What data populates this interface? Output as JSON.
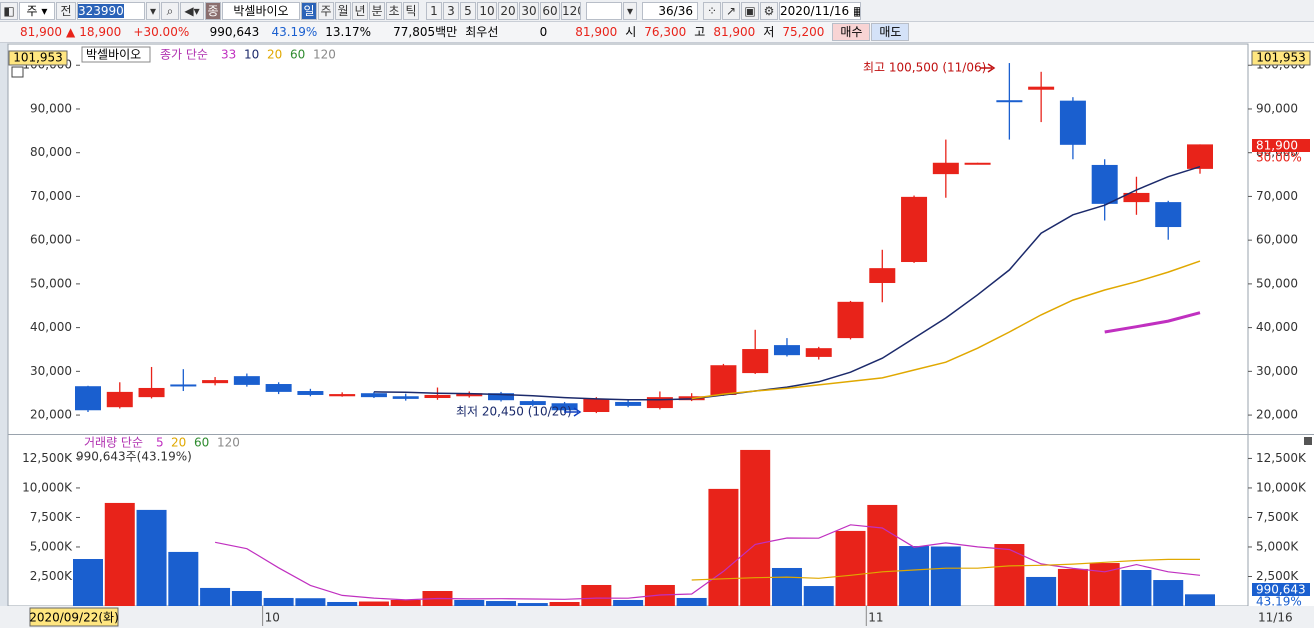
{
  "toolbar": {
    "mode": "주",
    "scope": "전",
    "code": "323990",
    "name": "박셀바이오",
    "periods": [
      "일",
      "주",
      "월",
      "년",
      "분",
      "초",
      "틱"
    ],
    "intervals": [
      "1",
      "3",
      "5",
      "10",
      "20",
      "30",
      "60",
      "120"
    ],
    "count": "36/36",
    "date": "2020/11/16"
  },
  "quote": {
    "price": "81,900",
    "change": "18,900",
    "change_pct": "+30.00%",
    "volume": "990,643",
    "volume_ratio": "43.19%",
    "turnover": "13.17%",
    "amount": "77,805백만",
    "best_label": "최우선",
    "best_qty": "0",
    "best_price": "81,900",
    "open_label": "시",
    "open": "76,300",
    "high_label": "고",
    "high": "81,900",
    "low_label": "저",
    "low": "75,200",
    "buy": "매수",
    "sell": "매도"
  },
  "chart_data": [
    {
      "type": "candlestick",
      "title": "박셀바이오",
      "legend_prefix": "종가 단순",
      "up_color": "#e8231a",
      "down_color": "#1a5fcf",
      "open": [
        26600,
        21800,
        24100,
        27000,
        27300,
        28900,
        27100,
        25500,
        24300,
        25000,
        24300,
        23900,
        24300,
        25000,
        23200,
        22700,
        20700,
        23000,
        21600,
        23400,
        24600,
        29600,
        36000,
        33300,
        37600,
        50200,
        55000,
        75100,
        77600,
        92000,
        94400,
        91900,
        77200,
        68700,
        68700,
        76300
      ],
      "high": [
        26700,
        27500,
        31000,
        30500,
        28700,
        29500,
        27500,
        26000,
        25200,
        25300,
        24900,
        26300,
        25400,
        25300,
        23500,
        23000,
        24100,
        23500,
        25400,
        25000,
        31700,
        39500,
        37600,
        35600,
        46100,
        57800,
        70200,
        83000,
        77700,
        100500,
        98500,
        92700,
        78500,
        74500,
        69000,
        81900
      ],
      "low": [
        20700,
        21500,
        23800,
        25500,
        26800,
        26500,
        24800,
        24300,
        24200,
        23900,
        23300,
        23500,
        24000,
        23100,
        22000,
        20900,
        20450,
        21800,
        21300,
        23200,
        24400,
        29400,
        33400,
        32700,
        37300,
        45800,
        54800,
        69700,
        77600,
        83000,
        87000,
        78500,
        64500,
        65800,
        60100,
        75200
      ],
      "close": [
        21100,
        25300,
        26200,
        26800,
        28000,
        26900,
        25300,
        24600,
        24800,
        24100,
        23700,
        24600,
        25000,
        23400,
        22300,
        21100,
        23700,
        22100,
        24100,
        24300,
        31400,
        35100,
        33700,
        35300,
        45900,
        53600,
        69900,
        77700,
        77700,
        91700,
        95100,
        81800,
        68300,
        70800,
        63000,
        81900
      ],
      "ma": [
        {
          "name": "33",
          "color": "#c030c0",
          "values": [
            null,
            null,
            null,
            null,
            null,
            null,
            null,
            null,
            null,
            null,
            null,
            null,
            null,
            null,
            null,
            null,
            null,
            null,
            null,
            null,
            null,
            null,
            null,
            null,
            null,
            null,
            null,
            null,
            null,
            null,
            null,
            null,
            39000,
            40200,
            41500,
            43400
          ]
        },
        {
          "name": "10",
          "color": "#1c2a6b",
          "values": [
            null,
            null,
            null,
            null,
            null,
            null,
            null,
            null,
            null,
            25300,
            25200,
            25000,
            24900,
            24700,
            24400,
            24000,
            23700,
            23500,
            23500,
            23700,
            24600,
            25500,
            26400,
            27600,
            29800,
            33000,
            37600,
            42200,
            47500,
            53200,
            61600,
            65800,
            68000,
            71500,
            74500,
            76800
          ]
        },
        {
          "name": "20",
          "color": "#e0a800",
          "values": [
            null,
            null,
            null,
            null,
            null,
            null,
            null,
            null,
            null,
            null,
            null,
            null,
            null,
            null,
            null,
            null,
            null,
            null,
            null,
            23800,
            24800,
            25500,
            26100,
            26900,
            27700,
            28500,
            30300,
            32100,
            35300,
            39000,
            42900,
            46300,
            48600,
            50500,
            52700,
            55200
          ]
        },
        {
          "name": "60",
          "color": "#2e8b2e"
        },
        {
          "name": "120",
          "color": "#8a8a8a"
        }
      ],
      "ylim": [
        15900,
        104400
      ],
      "yticks": [
        {
          "value": 20000,
          "label": "20,000"
        },
        {
          "value": 30000,
          "label": "30,000"
        },
        {
          "value": 40000,
          "label": "40,000"
        },
        {
          "value": 50000,
          "label": "50,000"
        },
        {
          "value": 60000,
          "label": "60,000"
        },
        {
          "value": 70000,
          "label": "70,000"
        },
        {
          "value": 80000,
          "label": "80,000"
        },
        {
          "value": 90000,
          "label": "90,000"
        },
        {
          "value": 100000,
          "label": "100,000"
        }
      ],
      "high_annotation": "최고 100,500 (11/06)",
      "low_annotation": "최저 20,450 (10/20)",
      "cursor_value": "101,953",
      "price_tag": "81,900",
      "change_tag": "30.00%"
    },
    {
      "type": "bar",
      "legend_prefix": "거래량 단순",
      "info": "990,643주(43.19%)",
      "up_color": "#e8231a",
      "down_color": "#1a5fcf",
      "categories": [
        "2020/09/22(화)",
        null,
        null,
        null,
        null,
        null,
        "10",
        null,
        null,
        null,
        null,
        null,
        null,
        null,
        null,
        null,
        null,
        null,
        null,
        null,
        null,
        null,
        null,
        null,
        null,
        "11",
        null,
        null,
        null,
        null,
        null,
        null,
        null,
        null,
        null,
        "11/16"
      ],
      "values": [
        3980,
        8730,
        8140,
        4580,
        1530,
        1270,
        680,
        660,
        340,
        380,
        510,
        1270,
        510,
        420,
        250,
        340,
        1780,
        510,
        1780,
        680,
        9920,
        13220,
        3220,
        1690,
        6360,
        8560,
        5080,
        5040,
        0,
        5250,
        2460,
        3140,
        3640,
        3050,
        2200,
        990.643
      ],
      "ma": [
        {
          "name": "5",
          "color": "#c030c0",
          "values": [
            null,
            null,
            null,
            null,
            5392,
            4850,
            3240,
            1744,
            896,
            666,
            514,
            632,
            602,
            618,
            592,
            566,
            670,
            660,
            932,
            1018,
            2934,
            5222,
            5764,
            5746,
            6882,
            6610,
            4982,
            5346,
            5008,
            4786,
            3566,
            3186,
            2898,
            3508,
            2898,
            2604
          ]
        },
        {
          "name": "20",
          "color": "#e0a800",
          "values": [
            null,
            null,
            null,
            null,
            null,
            null,
            null,
            null,
            null,
            null,
            null,
            null,
            null,
            null,
            null,
            null,
            null,
            null,
            null,
            2200,
            2300,
            2400,
            2450,
            2350,
            2600,
            2900,
            3050,
            3200,
            3200,
            3400,
            3450,
            3550,
            3700,
            3850,
            3950,
            3950
          ]
        },
        {
          "name": "60",
          "color": "#2e8b2e"
        },
        {
          "name": "120",
          "color": "#8a8a8a"
        }
      ],
      "ylim": [
        0,
        14400
      ],
      "yticks": [
        {
          "value": 2500,
          "label": "2,500K"
        },
        {
          "value": 5000,
          "label": "5,000K"
        },
        {
          "value": 7500,
          "label": "7,500K"
        },
        {
          "value": 10000,
          "label": "10,000K"
        },
        {
          "value": 12500,
          "label": "12,500K"
        }
      ],
      "volume_tag": "990,643",
      "ratio_tag": "43.19%"
    }
  ]
}
